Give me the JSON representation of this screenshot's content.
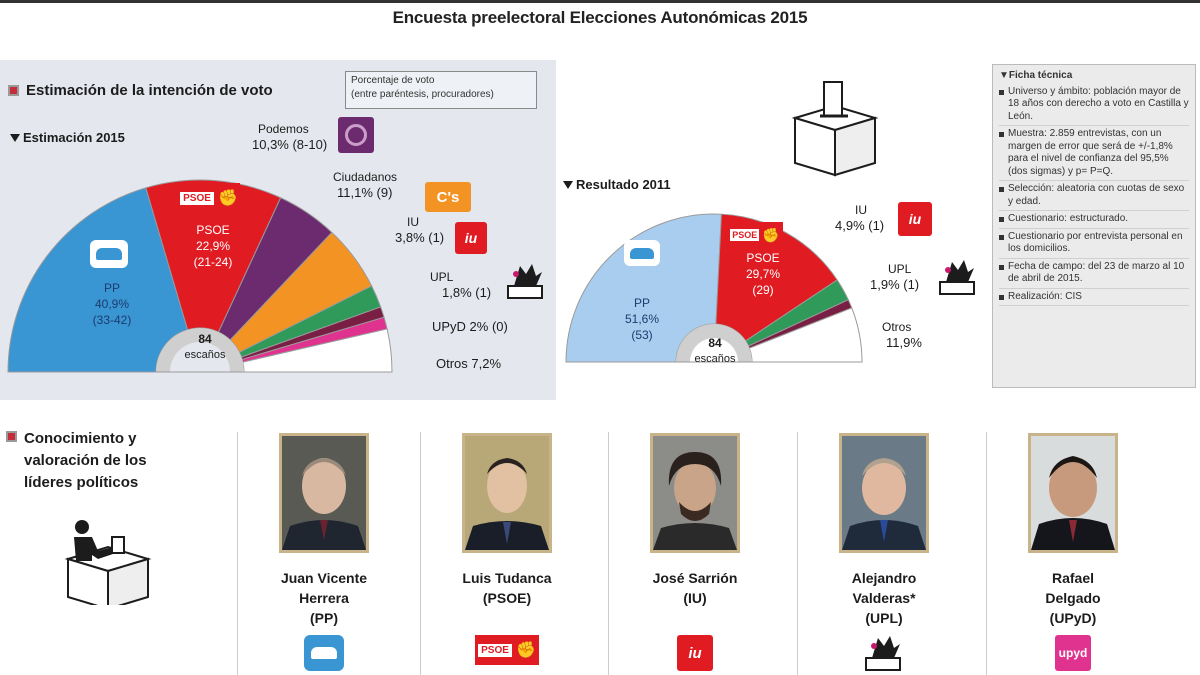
{
  "title": "Encuesta preelectoral Elecciones Autonómicas 2015",
  "estimacion": {
    "heading": "Estimación de la intención de voto",
    "note_lines": [
      "Porcentaje de voto",
      "(entre paréntesis, procuradores)"
    ],
    "subheading": "Estimación 2015"
  },
  "resultado": {
    "subheading": "Resultado 2011"
  },
  "seats_total": "84",
  "seats_label": "escaños",
  "chart_data": [
    {
      "type": "pie",
      "title": "Estimación 2015",
      "series": [
        {
          "name": "PP",
          "value": 40.9,
          "text": "40,9%",
          "seats": "(33-42)"
        },
        {
          "name": "PSOE",
          "value": 22.9,
          "text": "22,9%",
          "seats": "(21-24)"
        },
        {
          "name": "Podemos",
          "value": 10.3,
          "text": "10,3%",
          "seats": "(8-10)"
        },
        {
          "name": "Ciudadanos",
          "value": 11.1,
          "text": "11,1%",
          "seats": "(9)"
        },
        {
          "name": "IU",
          "value": 3.8,
          "text": "3,8%",
          "seats": "(1)"
        },
        {
          "name": "UPL",
          "value": 1.8,
          "text": "1,8%",
          "seats": "(1)"
        },
        {
          "name": "UPyD",
          "value": 2,
          "text": "2%",
          "seats": "(0)"
        },
        {
          "name": "Otros",
          "value": 7.2,
          "text": "7,2%",
          "seats": ""
        }
      ]
    },
    {
      "type": "pie",
      "title": "Resultado 2011",
      "series": [
        {
          "name": "PP",
          "value": 51.6,
          "text": "51,6%",
          "seats": "(53)"
        },
        {
          "name": "PSOE",
          "value": 29.7,
          "text": "29,7%",
          "seats": "(29)"
        },
        {
          "name": "IU",
          "value": 4.9,
          "text": "4,9%",
          "seats": "(1)"
        },
        {
          "name": "UPL",
          "value": 1.9,
          "text": "1,9%",
          "seats": "(1)"
        },
        {
          "name": "Otros",
          "value": 11.9,
          "text": "11,9%",
          "seats": ""
        }
      ]
    }
  ],
  "labels_2015": {
    "pp": "PP",
    "pp_pct": "40,9%",
    "pp_seats": "(33-42)",
    "psoe": "PSOE",
    "psoe_pct": "22,9%",
    "psoe_seats": "(21-24)",
    "podemos_name": "Podemos",
    "podemos_val": "10,3% (8-10)",
    "cs_name": "Ciudadanos",
    "cs_val": "11,1% (9)",
    "iu_name": "IU",
    "iu_val": "3,8% (1)",
    "upl_name": "UPL",
    "upl_val": "1,8% (1)",
    "upyd": "UPyD 2% (0)",
    "otros": "Otros 7,2%"
  },
  "labels_2011": {
    "pp": "PP",
    "pp_pct": "51,6%",
    "pp_seats": "(53)",
    "psoe": "PSOE",
    "psoe_pct": "29,7%",
    "psoe_seats": "(29)",
    "iu": "IU",
    "iu_val": "4,9% (1)",
    "upl": "UPL",
    "upl_val": "1,9% (1)",
    "otros_name": "Otros",
    "otros_val": "11,9%"
  },
  "logos": {
    "psoe_text": "PSOE",
    "cs_text": "C's",
    "iu_text": "iu",
    "upyd_text": "upyd"
  },
  "ficha": {
    "title": "Ficha técnica",
    "items": [
      "Universo y ámbito: población mayor de 18 años con derecho a voto en Castilla y León.",
      "Muestra: 2.859 entrevistas, con un margen de error que será de +/-1,8% para el nivel de confianza del 95,5% (dos sigmas) y p= P=Q.",
      "Selección: aleatoria con cuotas de sexo y edad.",
      "Cuestionario: estructurado.",
      "Cuestionario por entrevista personal en los domicilios.",
      "Fecha de campo: del 23 de marzo al 10 de abril de 2015.",
      "Realización: CIS"
    ]
  },
  "leaders": {
    "heading_lines": [
      "Conocimiento y",
      "valoración de los",
      "líderes políticos"
    ],
    "people": [
      {
        "name_lines": [
          "Juan Vicente",
          "Herrera",
          "(PP)"
        ],
        "party": "PP"
      },
      {
        "name_lines": [
          "Luis Tudanca",
          "(PSOE)"
        ],
        "party": "PSOE"
      },
      {
        "name_lines": [
          "José Sarrión",
          "(IU)"
        ],
        "party": "IU"
      },
      {
        "name_lines": [
          "Alejandro",
          "Valderas*",
          "(UPL)"
        ],
        "party": "UPL"
      },
      {
        "name_lines": [
          "Rafael",
          "Delgado",
          "(UPyD)"
        ],
        "party": "UPyD"
      }
    ]
  },
  "colors": {
    "pp": "#3a95d3",
    "pp_2011": "#a9cdee",
    "psoe": "#e01b22",
    "podemos": "#6d2b6f",
    "cs": "#f39323",
    "iu": "#2f9a5a",
    "upl": "#7a1f44",
    "upyd": "#e0338f",
    "otros": "#ffffff"
  },
  "icons": {
    "section_marker": "red-square-icon",
    "ballot_box": "ballot-box-icon",
    "voter": "voter-ballot-icon",
    "upl_lion": "lion-icon"
  }
}
